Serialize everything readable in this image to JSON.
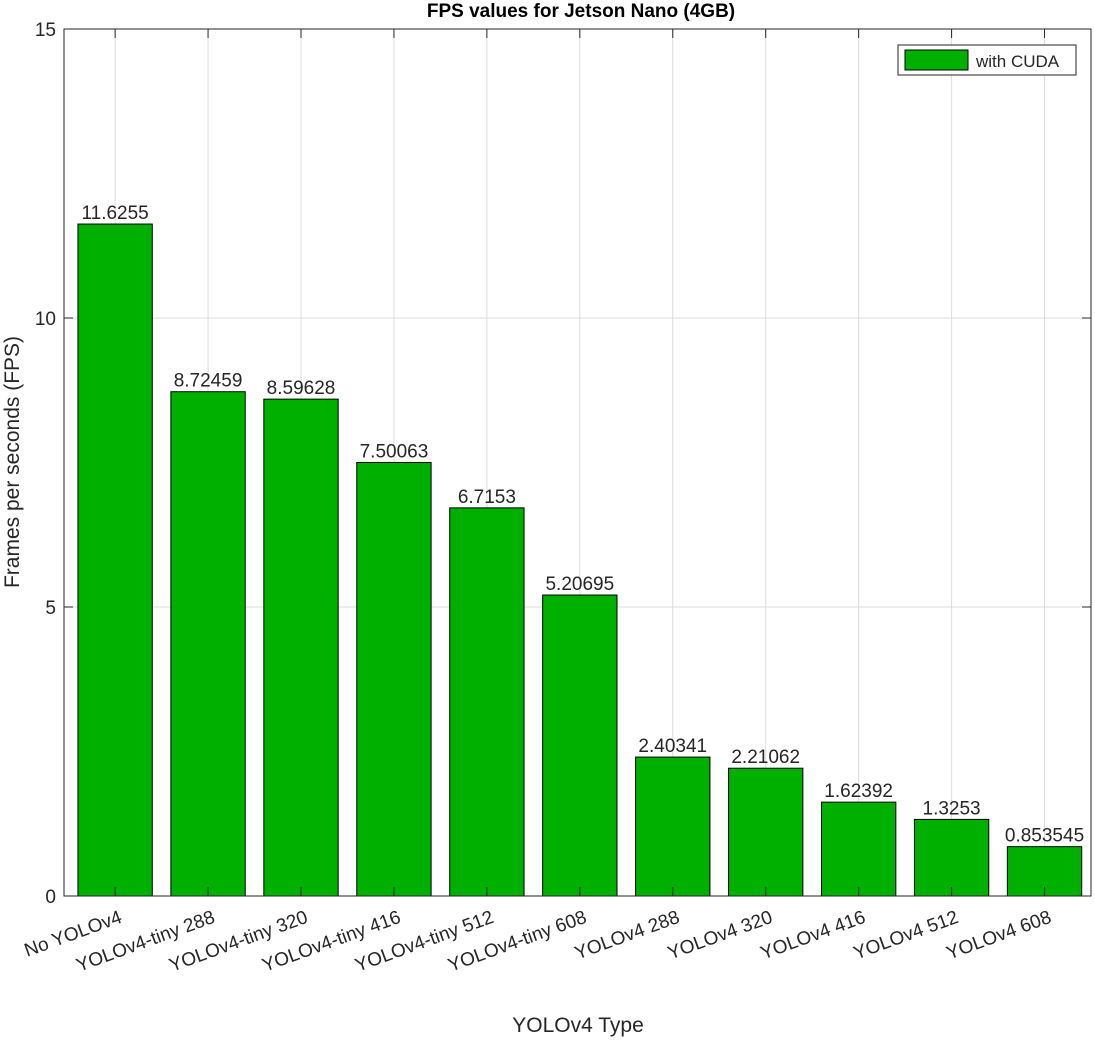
{
  "chart_data": {
    "type": "bar",
    "title": "FPS values for Jetson Nano (4GB)",
    "xlabel": "YOLOv4 Type",
    "ylabel": "Frames per seconds (FPS)",
    "ylim": [
      0,
      15
    ],
    "yticks": [
      0,
      5,
      10,
      15
    ],
    "grid": true,
    "legend_position": "top-right",
    "bar_color": "#00b000",
    "categories": [
      "No YOLOv4",
      "YOLOv4-tiny 288",
      "YOLOv4-tiny 320",
      "YOLOv4-tiny 416",
      "YOLOv4-tiny 512",
      "YOLOv4-tiny 608",
      "YOLOv4 288",
      "YOLOv4 320",
      "YOLOv4 416",
      "YOLOv4 512",
      "YOLOv4 608"
    ],
    "series": [
      {
        "name": "with CUDA",
        "values": [
          11.6255,
          8.72459,
          8.59628,
          7.50063,
          6.7153,
          5.20695,
          2.40341,
          2.21062,
          1.62392,
          1.3253,
          0.853545
        ],
        "labels": [
          "11.6255",
          "8.72459",
          "8.59628",
          "7.50063",
          "6.7153",
          "5.20695",
          "2.40341",
          "2.21062",
          "1.62392",
          "1.3253",
          "0.853545"
        ]
      }
    ]
  }
}
